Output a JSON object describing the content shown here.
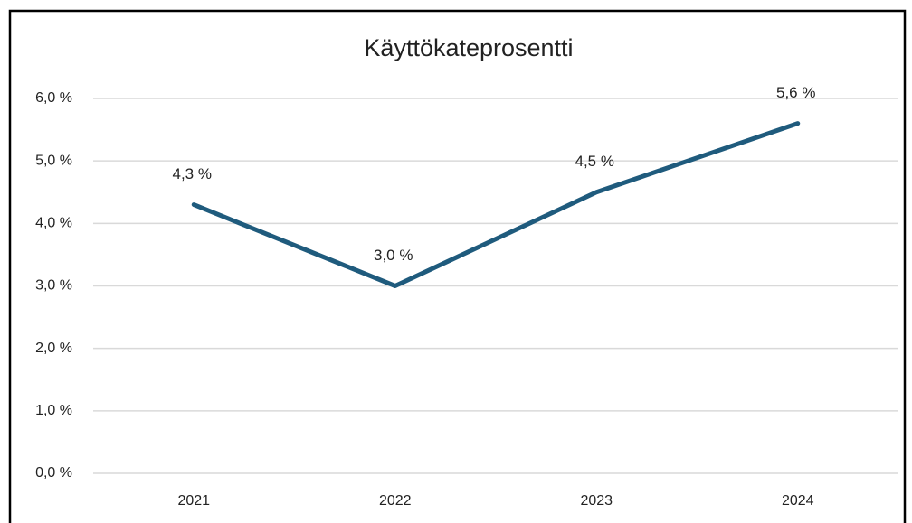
{
  "chart_data": {
    "type": "line",
    "title": "Käyttökateprosentti",
    "categories": [
      "2021",
      "2022",
      "2023",
      "2024"
    ],
    "values": [
      4.3,
      3.0,
      4.5,
      5.6
    ],
    "value_labels": [
      "4,3 %",
      "3,0 %",
      "4,5 %",
      "5,6 %"
    ],
    "color": "#1f5b7d",
    "ylim": [
      0,
      6
    ],
    "yticks": [
      {
        "value": 0,
        "label": "0,0 %"
      },
      {
        "value": 1,
        "label": "1,0 %"
      },
      {
        "value": 2,
        "label": "2,0 %"
      },
      {
        "value": 3,
        "label": "3,0 %"
      },
      {
        "value": 4,
        "label": "4,0 %"
      },
      {
        "value": 5,
        "label": "5,0 %"
      },
      {
        "value": 6,
        "label": "6,0 %"
      }
    ],
    "grid": true
  }
}
